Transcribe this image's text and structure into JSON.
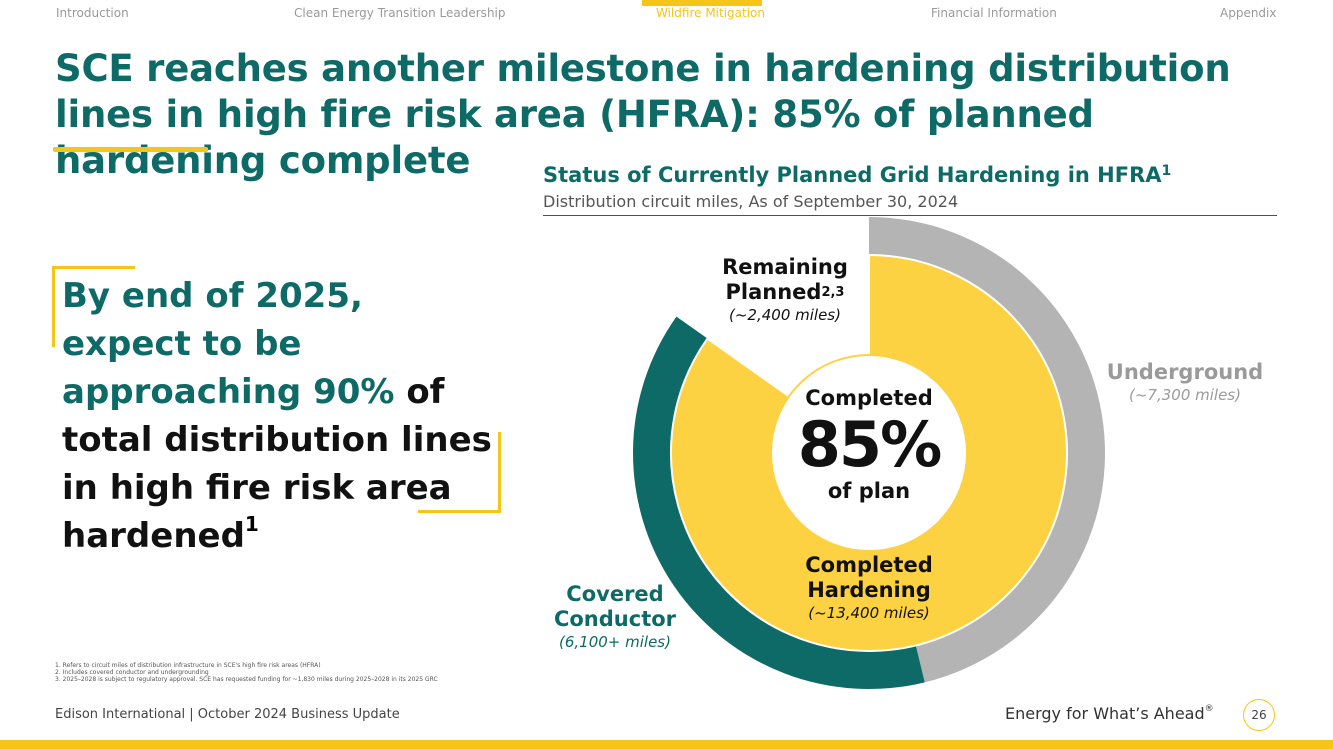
{
  "nav": {
    "items": [
      "Introduction",
      "Clean Energy Transition Leadership",
      "Wildfire Mitigation",
      "Financial Information",
      "Appendix"
    ],
    "active": "Wildfire Mitigation"
  },
  "title": "SCE reaches another milestone in hardening distribution lines in high fire risk area (HFRA): 85% of planned hardening complete",
  "callout": {
    "teal": "By end of 2025, expect to be approaching 90%",
    "black": "of total distribution lines in high fire risk area hardened",
    "sup": "1"
  },
  "chart_title": "Status of Currently Planned Grid Hardening in HFRA",
  "chart_title_sup": "1",
  "chart_subtitle": "Distribution circuit miles, As of September 30, 2024",
  "chart_data": {
    "type": "pie",
    "inner": {
      "categories": [
        "Completed Hardening",
        "Remaining Planned"
      ],
      "values": [
        13400,
        2400
      ],
      "colors": [
        "#fdd242",
        "#ffffff"
      ]
    },
    "outer": {
      "categories": [
        "Underground",
        "Covered Conductor"
      ],
      "values": [
        7300,
        6100
      ],
      "colors": [
        "#b4b4b4",
        "#0e6a66"
      ]
    },
    "center": {
      "top": "Completed",
      "value": "85%",
      "bottom": "of plan"
    },
    "labels": {
      "remaining": {
        "line1": "Remaining",
        "line2": "Planned",
        "sup": "2,3",
        "miles": "(~2,400 miles)"
      },
      "underground": {
        "name": "Underground",
        "miles": "(~7,300 miles)"
      },
      "completed": {
        "line1": "Completed",
        "line2": "Hardening",
        "miles": "(~13,400 miles)"
      },
      "covered": {
        "line1": "Covered",
        "line2": "Conductor",
        "miles": "(6,100+ miles)"
      }
    }
  },
  "footnotes": [
    "1.   Refers to circuit miles of distribution infrastructure in SCE's high fire risk areas (HFRA)",
    "2.   Includes covered conductor and undergrounding",
    "3.   2025–2028 is subject to regulatory approval. SCE has requested funding for ~1,830 miles during 2025–2028 in its 2025 GRC"
  ],
  "footer": {
    "left": "Edison International |  October 2024 Business Update",
    "right": "Energy for What’s Ahead",
    "right_mark": "®",
    "page": "26"
  },
  "colors": {
    "teal": "#0e6a66",
    "yellow": "#f5c518",
    "gray": "#b4b4b4",
    "yellow_fill": "#fdd242"
  }
}
